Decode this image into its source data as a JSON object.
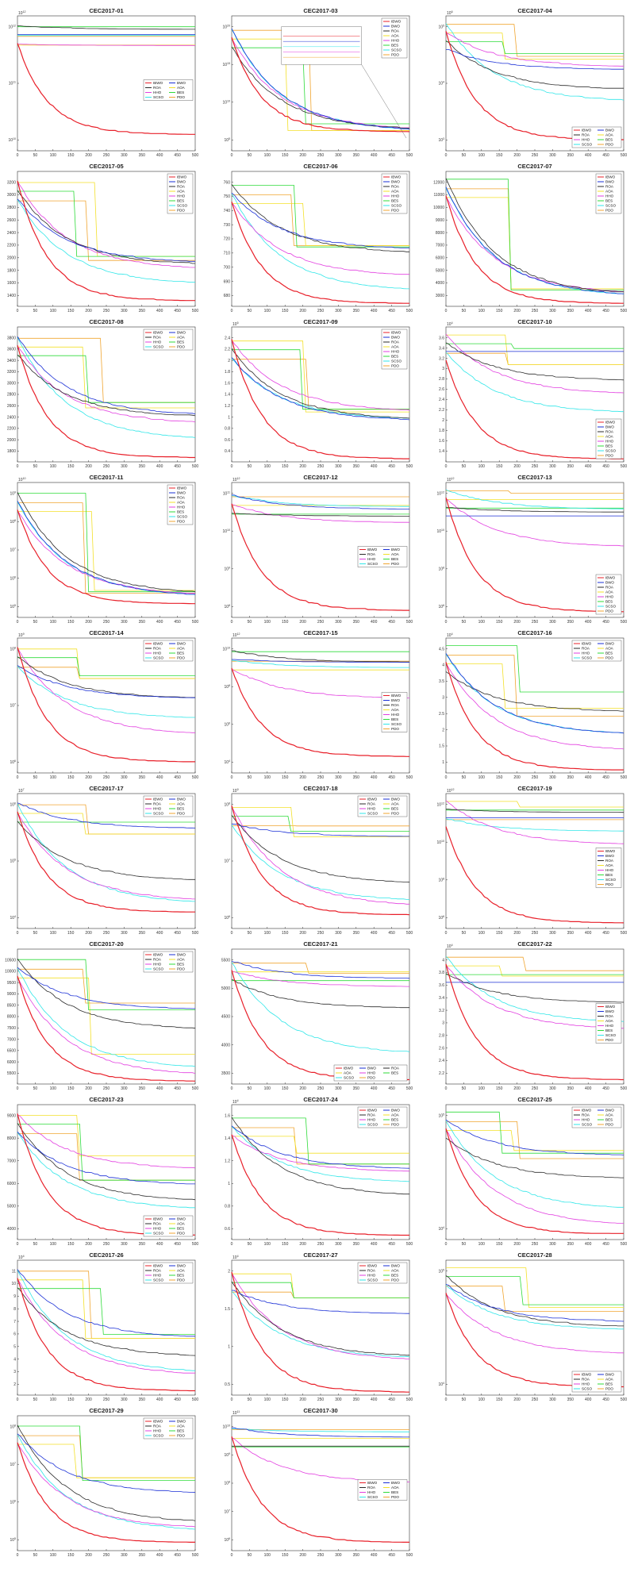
{
  "series_names": [
    "IBWO",
    "BWO",
    "ROA",
    "AOA",
    "HHO",
    "BES",
    "SCSO",
    "PDO"
  ],
  "series_colors": {
    "IBWO": "#e8202a",
    "BWO": "#1a2fd6",
    "ROA": "#2b2b2b",
    "AOA": "#f3e02a",
    "HHO": "#e23fe0",
    "BES": "#2fdb3a",
    "SCSO": "#2fe6e8",
    "PDO": "#f0a530"
  },
  "x_ticks": [
    "0",
    "50",
    "100",
    "150",
    "200",
    "250",
    "300",
    "350",
    "400",
    "450",
    "500"
  ],
  "chart_data": [
    {
      "type": "line",
      "title": "CEC2017-01",
      "scale": "log",
      "ylabels": [
        "10",
        "10",
        "10"
      ],
      "ysup": [
        "10",
        "11",
        "12"
      ],
      "mult": "10",
      "multsup": "12",
      "legend_cols": 2,
      "legend_pos": "center-right",
      "final": {
        "IBWO": 0.12,
        "BWO": 0.88,
        "ROA": 0.9,
        "AOA": 0.93,
        "HHO": 0.78,
        "BES": 0.93,
        "SCSO": 0.86,
        "PDO": 0.93
      }
    },
    {
      "type": "line",
      "title": "CEC2017-03",
      "scale": "log",
      "ylabels": [
        "10",
        "10",
        "10",
        "10"
      ],
      "ysup": [
        "5",
        "10",
        "15",
        "20"
      ],
      "mult": "",
      "multsup": "",
      "legend_cols": 1,
      "legend_pos": "top-right",
      "inset": true,
      "final": {
        "IBWO": 0.14,
        "BWO": 0.14,
        "ROA": 0.15,
        "AOA": 0.15,
        "HHO": 0.15,
        "BES": 0.2,
        "SCSO": 0.14,
        "PDO": 0.15
      }
    },
    {
      "type": "line",
      "title": "CEC2017-04",
      "scale": "log",
      "ylabels": [
        "10",
        "10",
        "10"
      ],
      "ysup": [
        "3",
        "4",
        "5"
      ],
      "mult": "10",
      "multsup": "6",
      "legend_cols": 2,
      "legend_pos": "bottom-right",
      "final": {
        "IBWO": 0.08,
        "BWO": 0.6,
        "ROA": 0.45,
        "AOA": 0.68,
        "HHO": 0.62,
        "BES": 0.72,
        "SCSO": 0.36,
        "PDO": 0.7
      }
    },
    {
      "type": "line",
      "title": "CEC2017-05",
      "scale": "lin",
      "ylabels": [
        "1400",
        "1600",
        "1800",
        "2000",
        "2200",
        "2400",
        "2600",
        "2800",
        "3000",
        "3200"
      ],
      "mult": "",
      "multsup": "",
      "legend_cols": 1,
      "legend_pos": "top-right",
      "final": {
        "IBWO": 0.04,
        "BWO": 0.32,
        "ROA": 0.3,
        "AOA": 0.37,
        "HHO": 0.27,
        "BES": 0.37,
        "SCSO": 0.16,
        "PDO": 0.34
      }
    },
    {
      "type": "line",
      "title": "CEC2017-06",
      "scale": "lin",
      "ylabels": [
        "680",
        "690",
        "700",
        "710",
        "720",
        "730",
        "740",
        "750",
        "760"
      ],
      "mult": "",
      "multsup": "",
      "legend_cols": 1,
      "legend_pos": "top-right",
      "final": {
        "IBWO": 0.02,
        "BWO": 0.42,
        "ROA": 0.39,
        "AOA": 0.45,
        "HHO": 0.22,
        "BES": 0.44,
        "SCSO": 0.11,
        "PDO": 0.45
      }
    },
    {
      "type": "line",
      "title": "CEC2017-07",
      "scale": "lin",
      "ylabels": [
        "3000",
        "4000",
        "5000",
        "6000",
        "7000",
        "8000",
        "9000",
        "10000",
        "11000",
        "12000"
      ],
      "mult": "",
      "multsup": "",
      "legend_cols": 1,
      "legend_pos": "top-right",
      "final": {
        "IBWO": 0.02,
        "BWO": 0.07,
        "ROA": 0.08,
        "AOA": 0.13,
        "HHO": 0.09,
        "BES": 0.12,
        "SCSO": 0.07,
        "PDO": 0.13
      }
    },
    {
      "type": "line",
      "title": "CEC2017-08",
      "scale": "lin",
      "ylabels": [
        "1800",
        "2000",
        "2200",
        "2400",
        "2600",
        "2800",
        "3000",
        "3200",
        "3400",
        "3600",
        "3800"
      ],
      "mult": "",
      "multsup": "",
      "legend_cols": 2,
      "legend_pos": "top-right",
      "final": {
        "IBWO": 0.03,
        "BWO": 0.34,
        "ROA": 0.33,
        "AOA": 0.4,
        "HHO": 0.28,
        "BES": 0.44,
        "SCSO": 0.16,
        "PDO": 0.44
      }
    },
    {
      "type": "line",
      "title": "CEC2017-09",
      "scale": "lin",
      "ylabels": [
        "0.4",
        "0.6",
        "0.8",
        "1",
        "1.2",
        "1.4",
        "1.6",
        "1.8",
        "2",
        "2.2",
        "2.4"
      ],
      "mult": "10",
      "multsup": "5",
      "legend_cols": 1,
      "legend_pos": "top-right",
      "final": {
        "IBWO": 0.02,
        "BWO": 0.3,
        "ROA": 0.31,
        "AOA": 0.37,
        "HHO": 0.37,
        "BES": 0.39,
        "SCSO": 0.31,
        "PDO": 0.39
      }
    },
    {
      "type": "line",
      "title": "CEC2017-10",
      "scale": "lin",
      "ylabels": [
        "1.4",
        "1.6",
        "1.8",
        "2",
        "2.2",
        "2.4",
        "2.6",
        "2.8",
        "3",
        "3.2",
        "3.4",
        "3.6"
      ],
      "mult": "10",
      "multsup": "4",
      "legend_cols": 1,
      "legend_pos": "bottom-right",
      "final": {
        "IBWO": 0.02,
        "BWO": 0.86,
        "ROA": 0.6,
        "AOA": 0.72,
        "HHO": 0.5,
        "BES": 0.84,
        "SCSO": 0.36,
        "PDO": 0.72
      }
    },
    {
      "type": "line",
      "title": "CEC2017-11",
      "scale": "log",
      "ylabels": [
        "10",
        "10",
        "10",
        "10",
        "10"
      ],
      "ysup": [
        "5",
        "6",
        "7",
        "8",
        "9"
      ],
      "mult": "10",
      "multsup": "10",
      "legend_cols": 1,
      "legend_pos": "top-right",
      "final": {
        "IBWO": 0.1,
        "BWO": 0.15,
        "ROA": 0.17,
        "AOA": 0.2,
        "HHO": 0.16,
        "BES": 0.19,
        "SCSO": 0.15,
        "PDO": 0.18
      }
    },
    {
      "type": "line",
      "title": "CEC2017-12",
      "scale": "log",
      "ylabels": [
        "10",
        "10",
        "10",
        "10"
      ],
      "ysup": [
        "8",
        "9",
        "10",
        "11"
      ],
      "mult": "10",
      "multsup": "12",
      "legend_cols": 2,
      "legend_pos": "center-right",
      "final": {
        "IBWO": 0.05,
        "BWO": 0.8,
        "ROA": 0.75,
        "AOA": 0.9,
        "HHO": 0.7,
        "BES": 0.92,
        "SCSO": 0.82,
        "PDO": 0.9
      }
    },
    {
      "type": "line",
      "title": "CEC2017-13",
      "scale": "log",
      "ylabels": [
        "10",
        "10",
        "10",
        "10"
      ],
      "ysup": [
        "6",
        "8",
        "10",
        "12"
      ],
      "mult": "10",
      "multsup": "12",
      "legend_cols": 1,
      "legend_pos": "bottom-right",
      "final": {
        "IBWO": 0.04,
        "BWO": 0.85,
        "ROA": 0.78,
        "AOA": 0.92,
        "HHO": 0.52,
        "BES": 0.93,
        "SCSO": 0.8,
        "PDO": 0.92
      }
    },
    {
      "type": "line",
      "title": "CEC2017-14",
      "scale": "log",
      "ylabels": [
        "10",
        "10",
        "10"
      ],
      "ysup": [
        "6",
        "7",
        "8"
      ],
      "mult": "10",
      "multsup": "9",
      "legend_cols": 2,
      "legend_pos": "top-right",
      "final": {
        "IBWO": 0.08,
        "BWO": 0.55,
        "ROA": 0.55,
        "AOA": 0.7,
        "HHO": 0.28,
        "BES": 0.72,
        "SCSO": 0.4,
        "PDO": 0.7
      }
    },
    {
      "type": "line",
      "title": "CEC2017-15",
      "scale": "log",
      "ylabels": [
        "10",
        "10",
        "10",
        "10"
      ],
      "ysup": [
        "4",
        "6",
        "8",
        "10"
      ],
      "mult": "10",
      "multsup": "12",
      "legend_cols": 1,
      "legend_pos": "center-right",
      "final": {
        "IBWO": 0.12,
        "BWO": 0.82,
        "ROA": 0.82,
        "AOA": 0.9,
        "HHO": 0.55,
        "BES": 0.9,
        "SCSO": 0.78,
        "PDO": 0.9
      }
    },
    {
      "type": "line",
      "title": "CEC2017-16",
      "scale": "lin",
      "ylabels": [
        "1",
        "1.5",
        "2",
        "2.5",
        "3",
        "3.5",
        "4",
        "4.5"
      ],
      "mult": "10",
      "multsup": "4",
      "legend_cols": 2,
      "legend_pos": "top-right",
      "final": {
        "IBWO": 0.02,
        "BWO": 0.28,
        "ROA": 0.45,
        "AOA": 0.48,
        "HHO": 0.16,
        "BES": 0.6,
        "SCSO": 0.28,
        "PDO": 0.42
      }
    },
    {
      "type": "line",
      "title": "CEC2017-17",
      "scale": "log",
      "ylabels": [
        "10",
        "10",
        "10"
      ],
      "ysup": [
        "4",
        "5",
        "6"
      ],
      "mult": "10",
      "multsup": "7",
      "legend_cols": 2,
      "legend_pos": "top-right",
      "final": {
        "IBWO": 0.12,
        "BWO": 0.74,
        "ROA": 0.35,
        "AOA": 0.7,
        "HHO": 0.2,
        "BES": 0.8,
        "SCSO": 0.18,
        "PDO": 0.7
      }
    },
    {
      "type": "line",
      "title": "CEC2017-18",
      "scale": "log",
      "ylabels": [
        "10",
        "10",
        "10"
      ],
      "ysup": [
        "6",
        "7",
        "8"
      ],
      "mult": "10",
      "multsup": "9",
      "legend_cols": 2,
      "legend_pos": "top-right",
      "final": {
        "IBWO": 0.1,
        "BWO": 0.68,
        "ROA": 0.33,
        "AOA": 0.68,
        "HHO": 0.16,
        "BES": 0.72,
        "SCSO": 0.2,
        "PDO": 0.76
      }
    },
    {
      "type": "line",
      "title": "CEC2017-19",
      "scale": "log",
      "ylabels": [
        "10",
        "10",
        "10",
        "10"
      ],
      "ysup": [
        "6",
        "8",
        "10",
        "12"
      ],
      "mult": "10",
      "multsup": "12",
      "legend_cols": 1,
      "legend_pos": "center-right",
      "final": {
        "IBWO": 0.04,
        "BWO": 0.82,
        "ROA": 0.86,
        "AOA": 0.9,
        "HHO": 0.62,
        "BES": 0.9,
        "SCSO": 0.72,
        "PDO": 0.88
      }
    },
    {
      "type": "line",
      "title": "CEC2017-20",
      "scale": "lin",
      "ylabels": [
        "5500",
        "6000",
        "6500",
        "7000",
        "7500",
        "8000",
        "8500",
        "9000",
        "9500",
        "10000",
        "10500"
      ],
      "mult": "",
      "multsup": "",
      "legend_cols": 2,
      "legend_pos": "top-right",
      "final": {
        "IBWO": 0.02,
        "BWO": 0.55,
        "ROA": 0.4,
        "AOA": 0.22,
        "HHO": 0.06,
        "BES": 0.55,
        "SCSO": 0.11,
        "PDO": 0.6
      }
    },
    {
      "type": "line",
      "title": "CEC2017-21",
      "scale": "lin",
      "ylabels": [
        "3500",
        "4000",
        "4500",
        "5000",
        "5500"
      ],
      "mult": "",
      "multsup": "",
      "legend_cols": 3,
      "legend_pos": "bottom-right",
      "final": {
        "IBWO": 0.03,
        "BWO": 0.78,
        "ROA": 0.56,
        "AOA": 0.84,
        "HHO": 0.72,
        "BES": 0.79,
        "SCSO": 0.22,
        "PDO": 0.82
      }
    },
    {
      "type": "line",
      "title": "CEC2017-22",
      "scale": "lin",
      "ylabels": [
        "2.2",
        "2.4",
        "2.6",
        "2.8",
        "3",
        "3.2",
        "3.4",
        "3.6",
        "3.8",
        "4"
      ],
      "mult": "10",
      "multsup": "4",
      "legend_cols": 1,
      "legend_pos": "center-right",
      "final": {
        "IBWO": 0.03,
        "BWO": 0.82,
        "ROA": 0.6,
        "AOA": 0.8,
        "HHO": 0.4,
        "BES": 0.86,
        "SCSO": 0.45,
        "PDO": 0.84
      }
    },
    {
      "type": "line",
      "title": "CEC2017-23",
      "scale": "lin",
      "ylabels": [
        "4000",
        "5000",
        "6000",
        "7000",
        "8000",
        "9000"
      ],
      "mult": "",
      "multsup": "",
      "legend_cols": 2,
      "legend_pos": "bottom-right",
      "final": {
        "IBWO": 0.03,
        "BWO": 0.4,
        "ROA": 0.28,
        "AOA": 0.62,
        "HHO": 0.52,
        "BES": 0.44,
        "SCSO": 0.22,
        "PDO": 0.44
      }
    },
    {
      "type": "line",
      "title": "CEC2017-24",
      "scale": "lin",
      "ylabels": [
        "0.6",
        "0.8",
        "1",
        "1.2",
        "1.4",
        "1.6"
      ],
      "mult": "10",
      "multsup": "4",
      "legend_cols": 2,
      "legend_pos": "top-right",
      "final": {
        "IBWO": 0.03,
        "BWO": 0.52,
        "ROA": 0.32,
        "AOA": 0.64,
        "HHO": 0.5,
        "BES": 0.56,
        "SCSO": 0.42,
        "PDO": 0.56
      }
    },
    {
      "type": "line",
      "title": "CEC2017-25",
      "scale": "log",
      "ylabels": [
        "10",
        "10"
      ],
      "ysup": [
        "4",
        "5"
      ],
      "mult": "",
      "multsup": "",
      "legend_cols": 2,
      "legend_pos": "top-right",
      "final": {
        "IBWO": 0.04,
        "BWO": 0.62,
        "ROA": 0.45,
        "AOA": 0.66,
        "HHO": 0.1,
        "BES": 0.64,
        "SCSO": 0.22,
        "PDO": 0.6
      }
    },
    {
      "type": "line",
      "title": "CEC2017-26",
      "scale": "lin",
      "ylabels": [
        "2",
        "3",
        "4",
        "5",
        "6",
        "7",
        "8",
        "9",
        "10",
        "11"
      ],
      "mult": "10",
      "multsup": "4",
      "legend_cols": 2,
      "legend_pos": "top-right",
      "final": {
        "IBWO": 0.03,
        "BWO": 0.42,
        "ROA": 0.28,
        "AOA": 0.42,
        "HHO": 0.14,
        "BES": 0.45,
        "SCSO": 0.16,
        "PDO": 0.42
      }
    },
    {
      "type": "line",
      "title": "CEC2017-27",
      "scale": "lin",
      "ylabels": [
        "0.5",
        "1",
        "1.5",
        "2"
      ],
      "mult": "10",
      "multsup": "4",
      "legend_cols": 2,
      "legend_pos": "top-right",
      "final": {
        "IBWO": 0.02,
        "BWO": 0.6,
        "ROA": 0.28,
        "AOA": 0.72,
        "HHO": 0.25,
        "BES": 0.72,
        "SCSO": 0.27,
        "PDO": 0.72
      }
    },
    {
      "type": "line",
      "title": "CEC2017-28",
      "scale": "log",
      "ylabels": [
        "10",
        "10"
      ],
      "ysup": [
        "4",
        "5"
      ],
      "mult": "",
      "multsup": "",
      "legend_cols": 2,
      "legend_pos": "bottom-right",
      "final": {
        "IBWO": 0.06,
        "BWO": 0.54,
        "ROA": 0.5,
        "AOA": 0.65,
        "HHO": 0.3,
        "BES": 0.67,
        "SCSO": 0.48,
        "PDO": 0.62
      }
    },
    {
      "type": "line",
      "title": "CEC2017-29",
      "scale": "log",
      "ylabels": [
        "10",
        "10",
        "10",
        "10"
      ],
      "ysup": [
        "5",
        "6",
        "7",
        "8"
      ],
      "mult": "",
      "multsup": "",
      "legend_cols": 2,
      "legend_pos": "top-right",
      "final": {
        "IBWO": 0.06,
        "BWO": 0.42,
        "ROA": 0.2,
        "AOA": 0.54,
        "HHO": 0.16,
        "BES": 0.52,
        "SCSO": 0.14,
        "PDO": 0.54
      }
    },
    {
      "type": "line",
      "title": "CEC2017-30",
      "scale": "log",
      "ylabels": [
        "10",
        "10",
        "10",
        "10",
        "10"
      ],
      "ysup": [
        "6",
        "7",
        "8",
        "9",
        "10"
      ],
      "mult": "10",
      "multsup": "11",
      "legend_cols": 2,
      "legend_pos": "center-right",
      "final": {
        "IBWO": 0.06,
        "BWO": 0.84,
        "ROA": 0.84,
        "AOA": 0.92,
        "HHO": 0.5,
        "BES": 0.92,
        "SCSO": 0.88,
        "PDO": 0.92
      }
    }
  ]
}
